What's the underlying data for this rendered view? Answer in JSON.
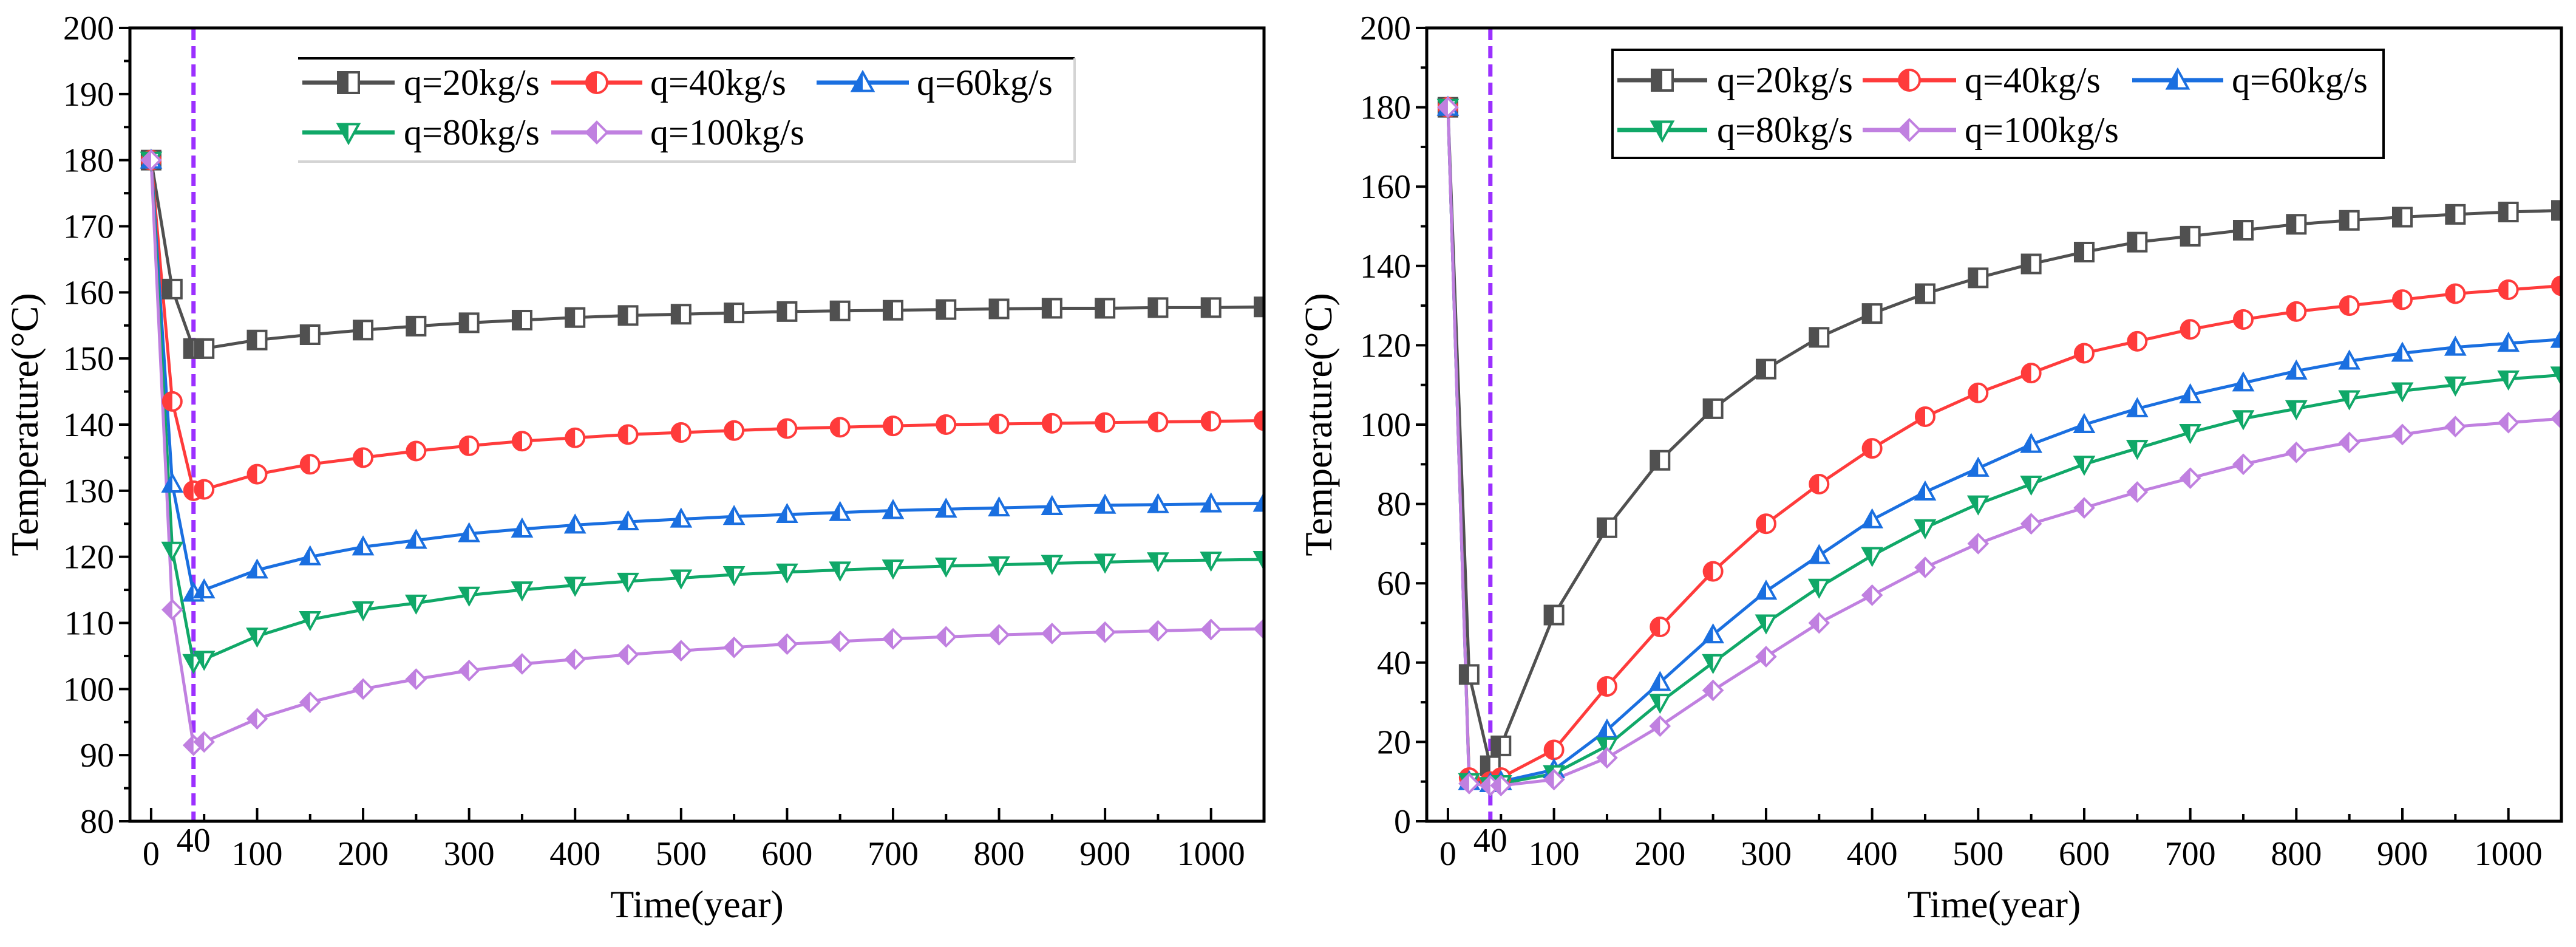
{
  "chart_data": [
    {
      "type": "line",
      "xlabel": "Time(year)",
      "ylabel": "Temperature(°C)",
      "xlim": [
        -20,
        1050
      ],
      "ylim": [
        80,
        200
      ],
      "xticks": [
        "0",
        "100",
        "200",
        "300",
        "400",
        "500",
        "600",
        "700",
        "800",
        "900",
        "1000"
      ],
      "xtick_values": [
        0,
        100,
        200,
        300,
        400,
        500,
        600,
        700,
        800,
        900,
        1000
      ],
      "yticks": [
        "80",
        "90",
        "100",
        "110",
        "120",
        "130",
        "140",
        "150",
        "160",
        "170",
        "180",
        "190",
        "200"
      ],
      "ytick_values": [
        80,
        90,
        100,
        110,
        120,
        130,
        140,
        150,
        160,
        170,
        180,
        190,
        200
      ],
      "y_minor_step": 5,
      "annotation": {
        "label": "40",
        "x": 40,
        "color": "#9b30ff",
        "style": "dashed vertical line"
      },
      "legend_placement": "top-center",
      "legend_border": "partial",
      "x": [
        0,
        20,
        40,
        50,
        100,
        150,
        200,
        250,
        300,
        350,
        400,
        450,
        500,
        550,
        600,
        650,
        700,
        750,
        800,
        850,
        900,
        950,
        1000,
        1050
      ],
      "series": [
        {
          "name": "q=20kg/s",
          "color": "#505050",
          "marker": "square",
          "values": [
            180,
            160.5,
            151.5,
            151.5,
            152.8,
            153.6,
            154.3,
            154.9,
            155.4,
            155.8,
            156.2,
            156.5,
            156.7,
            156.9,
            157.1,
            157.2,
            157.3,
            157.4,
            157.5,
            157.6,
            157.6,
            157.7,
            157.7,
            157.8
          ]
        },
        {
          "name": "q=40kg/s",
          "color": "#ff3b3b",
          "marker": "circle",
          "values": [
            180,
            143.5,
            130,
            130.2,
            132.5,
            134,
            135,
            136,
            136.8,
            137.5,
            138,
            138.5,
            138.8,
            139.1,
            139.4,
            139.6,
            139.8,
            140,
            140.1,
            140.2,
            140.3,
            140.4,
            140.5,
            140.6
          ]
        },
        {
          "name": "q=60kg/s",
          "color": "#1a6fe0",
          "marker": "triangle-up",
          "values": [
            180,
            131,
            114.5,
            115,
            118,
            120,
            121.5,
            122.5,
            123.5,
            124.2,
            124.8,
            125.3,
            125.7,
            126.1,
            126.4,
            126.7,
            127,
            127.2,
            127.4,
            127.6,
            127.8,
            127.9,
            128,
            128.1
          ]
        },
        {
          "name": "q=80kg/s",
          "color": "#10a868",
          "marker": "triangle-down",
          "values": [
            180,
            121,
            104,
            104.5,
            108,
            110.5,
            112,
            113,
            114.2,
            115,
            115.7,
            116.3,
            116.8,
            117.3,
            117.7,
            118,
            118.3,
            118.6,
            118.8,
            119,
            119.2,
            119.4,
            119.5,
            119.6
          ]
        },
        {
          "name": "q=100kg/s",
          "color": "#c080e0",
          "marker": "diamond",
          "values": [
            180,
            112,
            91.5,
            92,
            95.5,
            98,
            100,
            101.5,
            102.8,
            103.8,
            104.5,
            105.2,
            105.8,
            106.3,
            106.8,
            107.2,
            107.6,
            107.9,
            108.2,
            108.4,
            108.6,
            108.8,
            109,
            109.1
          ]
        }
      ]
    },
    {
      "type": "line",
      "xlabel": "Time(year)",
      "ylabel": "Temperature(°C)",
      "xlim": [
        -20,
        1050
      ],
      "ylim": [
        0,
        200
      ],
      "xticks": [
        "0",
        "100",
        "200",
        "300",
        "400",
        "500",
        "600",
        "700",
        "800",
        "900",
        "1000"
      ],
      "xtick_values": [
        0,
        100,
        200,
        300,
        400,
        500,
        600,
        700,
        800,
        900,
        1000
      ],
      "yticks": [
        "0",
        "20",
        "40",
        "60",
        "80",
        "100",
        "120",
        "140",
        "160",
        "180",
        "200"
      ],
      "ytick_values": [
        0,
        20,
        40,
        60,
        80,
        100,
        120,
        140,
        160,
        180,
        200
      ],
      "y_minor_step": 10,
      "annotation": {
        "label": "40",
        "x": 40,
        "color": "#9b30ff",
        "style": "dashed vertical line"
      },
      "legend_placement": "top-center",
      "legend_border": "full",
      "x": [
        0,
        20,
        40,
        50,
        100,
        150,
        200,
        250,
        300,
        350,
        400,
        450,
        500,
        550,
        600,
        650,
        700,
        750,
        800,
        850,
        900,
        950,
        1000,
        1050
      ],
      "series": [
        {
          "name": "q=20kg/s",
          "color": "#505050",
          "marker": "square",
          "values": [
            180,
            37,
            14,
            19,
            52,
            74,
            91,
            104,
            114,
            122,
            128,
            133,
            137,
            140.5,
            143.5,
            146,
            147.5,
            149,
            150.5,
            151.5,
            152.3,
            153,
            153.6,
            154
          ]
        },
        {
          "name": "q=40kg/s",
          "color": "#ff3b3b",
          "marker": "circle",
          "values": [
            180,
            11,
            10,
            11,
            18,
            34,
            49,
            63,
            75,
            85,
            94,
            102,
            108,
            113,
            118,
            121,
            124,
            126.5,
            128.5,
            130,
            131.5,
            133,
            134,
            135
          ]
        },
        {
          "name": "q=60kg/s",
          "color": "#1a6fe0",
          "marker": "triangle-up",
          "values": [
            180,
            10,
            9.5,
            10,
            13,
            23,
            35,
            47,
            58,
            67,
            76,
            83,
            89,
            95,
            100,
            104,
            107.5,
            110.5,
            113.5,
            116,
            118,
            119.5,
            120.5,
            121.5
          ]
        },
        {
          "name": "q=80kg/s",
          "color": "#10a868",
          "marker": "triangle-down",
          "values": [
            180,
            10,
            9,
            9.5,
            12,
            19,
            30,
            40,
            50,
            59,
            67,
            74,
            80,
            85,
            90,
            94,
            98,
            101.5,
            104,
            106.5,
            108.5,
            110,
            111.5,
            112.5
          ]
        },
        {
          "name": "q=100kg/s",
          "color": "#c080e0",
          "marker": "diamond",
          "values": [
            180,
            9.5,
            9,
            9,
            10.5,
            16,
            24,
            33,
            41.5,
            50,
            57,
            64,
            70,
            75,
            79,
            83,
            86.5,
            90,
            93,
            95.5,
            97.5,
            99.5,
            100.5,
            101.5
          ]
        }
      ]
    }
  ]
}
